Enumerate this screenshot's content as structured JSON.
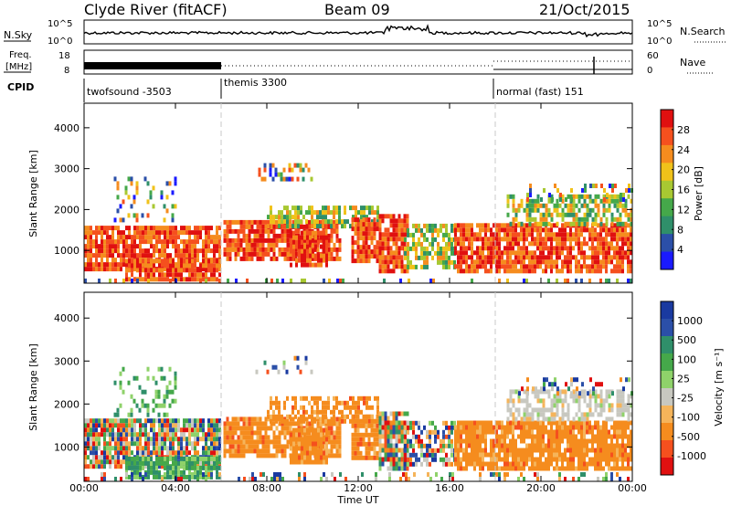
{
  "header": {
    "title": "Clyde River (fitACF)",
    "beam": "Beam 09",
    "date": "21/Oct/2015"
  },
  "panels": {
    "nsky": {
      "label": "N.Sky",
      "right_label": "N.Search",
      "ticks_left": [
        "10^5",
        "10^0"
      ],
      "ticks_right": [
        "10^5",
        "10^0"
      ]
    },
    "freq": {
      "label_line1": "Freq.",
      "label_line2": "[MHz]",
      "right_label": "Nave",
      "ticks_left": [
        "18",
        "8"
      ],
      "ticks_right": [
        "60",
        "0"
      ]
    },
    "cpid": {
      "label": "CPID",
      "segments": [
        {
          "name": "twofsound -3503",
          "start_hour": 0
        },
        {
          "name": "themis 3300",
          "start_hour": 6
        },
        {
          "name": "normal (fast) 151",
          "start_hour": 18
        }
      ]
    }
  },
  "colors": {
    "power_scale": [
      "#1a1aff",
      "#2b4fa8",
      "#2f8f6a",
      "#45a84a",
      "#a8c832",
      "#f0c21a",
      "#f58c1e",
      "#f5501e",
      "#e01010"
    ],
    "velocity_scale": [
      "#e01010",
      "#f5501e",
      "#f58c1e",
      "#f5b45a",
      "#c8c8c0",
      "#8fd26a",
      "#45a84a",
      "#2f8f6a",
      "#2b4fa8",
      "#1a3aa0"
    ]
  },
  "chart_data": [
    {
      "type": "heatmap",
      "quantity": "power",
      "ylabel": "Slant Range [km]",
      "ylim": [
        200,
        4600
      ],
      "xlim_hours": [
        0,
        24
      ],
      "yticks": [
        1000,
        2000,
        3000,
        4000
      ],
      "colorbar": {
        "label": "Power [dB]",
        "ticks": [
          4,
          8,
          12,
          16,
          20,
          24,
          28
        ],
        "range": [
          0,
          32
        ]
      }
    },
    {
      "type": "heatmap",
      "quantity": "velocity",
      "ylabel": "Slant Range [km]",
      "ylim": [
        200,
        4600
      ],
      "xlim_hours": [
        0,
        24
      ],
      "yticks": [
        1000,
        2000,
        3000,
        4000
      ],
      "colorbar": {
        "label": "Velocity [m s⁻¹]",
        "ticks": [
          "-1000",
          "-500",
          "-100",
          "-25",
          "25",
          "100",
          "500",
          "1000"
        ]
      }
    }
  ],
  "xaxis": {
    "label": "Time UT",
    "ticks": [
      "00:00",
      "04:00",
      "08:00",
      "12:00",
      "16:00",
      "20:00",
      "00:00"
    ]
  }
}
